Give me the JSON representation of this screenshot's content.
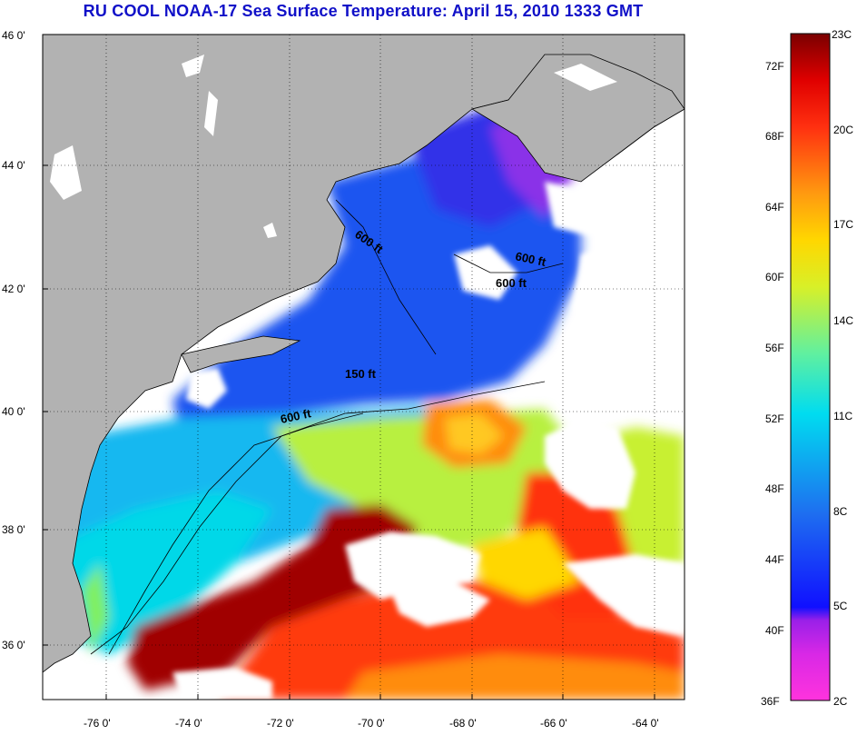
{
  "title": "RU COOL  NOAA-17  Sea Surface Temperature:  April 15, 2010 1333 GMT",
  "map": {
    "lat_labels": [
      "46 0'",
      "44 0'",
      "42 0'",
      "40 0'",
      "38 0'",
      "36 0'"
    ],
    "lat_values": [
      46,
      44,
      42,
      40,
      38,
      36
    ],
    "lon_labels": [
      "-76 0'",
      "-74 0'",
      "-72 0'",
      "-70 0'",
      "-68 0'",
      "-66 0'",
      "-64 0'"
    ],
    "lon_values": [
      -76,
      -74,
      -72,
      -70,
      -68,
      -66,
      -64
    ],
    "lat_range": [
      35,
      46
    ],
    "lon_range": [
      -77,
      -63
    ],
    "contour_labels": [
      "600 ft",
      "600 ft",
      "600 ft",
      "150 ft",
      "600 ft"
    ],
    "colors": {
      "land": "#b2b2b2",
      "cloud": "#ffffff",
      "coast": "#000000"
    }
  },
  "colorbar": {
    "fahrenheit_labels": [
      "72F",
      "68F",
      "64F",
      "60F",
      "56F",
      "52F",
      "48F",
      "44F",
      "40F",
      "36F"
    ],
    "celsius_labels": [
      "23C",
      "20C",
      "17C",
      "14C",
      "11C",
      "8C",
      "5C",
      "2C"
    ],
    "min_c": 2,
    "max_c": 23,
    "stops": [
      "#ff33dd",
      "#9a20e8",
      "#1010ff",
      "#1e6ef0",
      "#00dcf0",
      "#60f0a0",
      "#d8f028",
      "#ffd700",
      "#ff9a10",
      "#ff3010",
      "#e00000",
      "#7a0000"
    ]
  }
}
